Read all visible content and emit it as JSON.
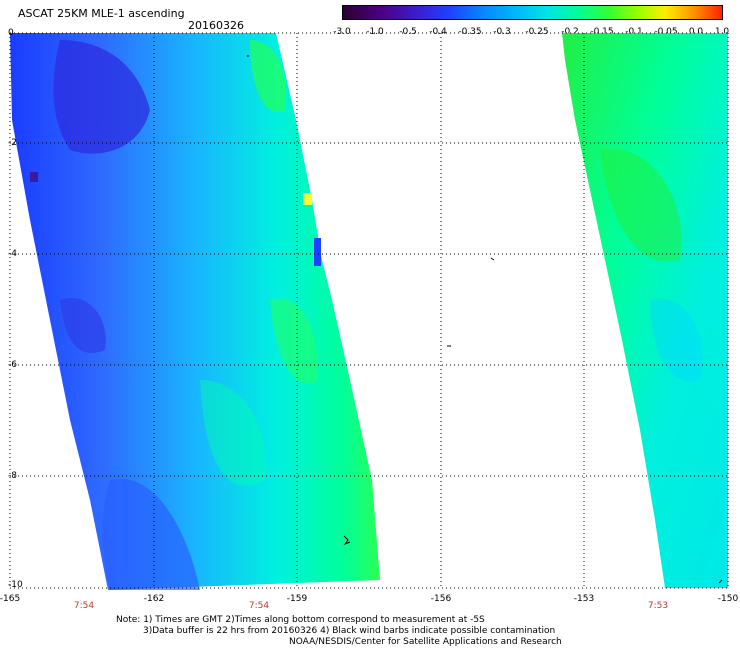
{
  "title": "ASCAT 25KM MLE-1 ascending",
  "date": "20160326",
  "colorbar": {
    "ticks": [
      "-3.0",
      "-1.0",
      "-0.5",
      "-0.4",
      "-0.35",
      "-0.3",
      "-0.25",
      "-0.2",
      "-0.15",
      "-0.1",
      "-0.05",
      "0.0",
      "1.0"
    ],
    "colors": [
      "#2a0033",
      "#4b0082",
      "#3b1fd0",
      "#1e40ff",
      "#0b7fff",
      "#00b4ff",
      "#00e5e5",
      "#00ff99",
      "#33ff33",
      "#99ff00",
      "#ffee00",
      "#ff9900",
      "#ff2200"
    ]
  },
  "axes": {
    "x_ticks": [
      "-165",
      "-162",
      "-159",
      "-156",
      "-153",
      "-150"
    ],
    "y_ticks": [
      "0",
      "-2",
      "-4",
      "-6",
      "-8",
      "-10"
    ],
    "x_range": [
      -165,
      -150
    ],
    "y_range": [
      0,
      -10
    ],
    "grid": true
  },
  "times": [
    "7:54",
    "7:54",
    "7:53"
  ],
  "notes": [
    "Note: 1) Times are GMT 2)Times along bottom correspond to measurement at -5S",
    "3)Data buffer is 22 hrs from 20160326 4) Black wind barbs indicate possible contamination",
    "NOAA/NESDIS/Center for Satellite Applications and Research"
  ]
}
